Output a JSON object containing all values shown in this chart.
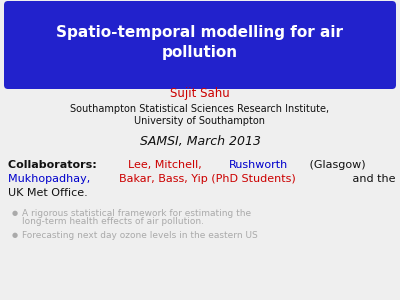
{
  "title_line1": "Spatio-temporal modelling for air",
  "title_line2": "pollution",
  "title_bg_color": "#2222cc",
  "title_text_color": "#ffffff",
  "author_name": "Sujit Sahu",
  "author_color": "#cc0000",
  "institute_line1": "Southampton Statistical Sciences Research Institute,",
  "institute_line2": "University of Southampton",
  "institute_color": "#111111",
  "venue": "SAMSI, March 2013",
  "venue_color": "#111111",
  "bg_color": "#efefef",
  "collab_line1": [
    {
      "text": "Collaborators: ",
      "color": "#111111",
      "bold": true
    },
    {
      "text": "Lee, Mitchell, ",
      "color": "#cc0000",
      "bold": false
    },
    {
      "text": "Rushworth",
      "color": "#0000cc",
      "bold": false
    },
    {
      "text": " (Glasgow)",
      "color": "#111111",
      "bold": false
    }
  ],
  "collab_line2": [
    {
      "text": "Mukhopadhay, ",
      "color": "#0000cc",
      "bold": false
    },
    {
      "text": "Bakar, Bass, Yip (PhD Students)",
      "color": "#cc0000",
      "bold": false
    },
    {
      "text": " and the",
      "color": "#111111",
      "bold": false
    }
  ],
  "collab_line3": "UK Met Office.",
  "bullet1a": "A rigorous statistical framework for estimating the",
  "bullet1b": "long-term health effects of air pollution.",
  "bullet2": "Forecasting next day ozone levels in the eastern US",
  "bullet_color": "#aaaaaa",
  "fontsize_title": 11,
  "fontsize_body": 8.5,
  "fontsize_collab": 8,
  "fontsize_venue": 9,
  "fontsize_bullet": 6.5
}
